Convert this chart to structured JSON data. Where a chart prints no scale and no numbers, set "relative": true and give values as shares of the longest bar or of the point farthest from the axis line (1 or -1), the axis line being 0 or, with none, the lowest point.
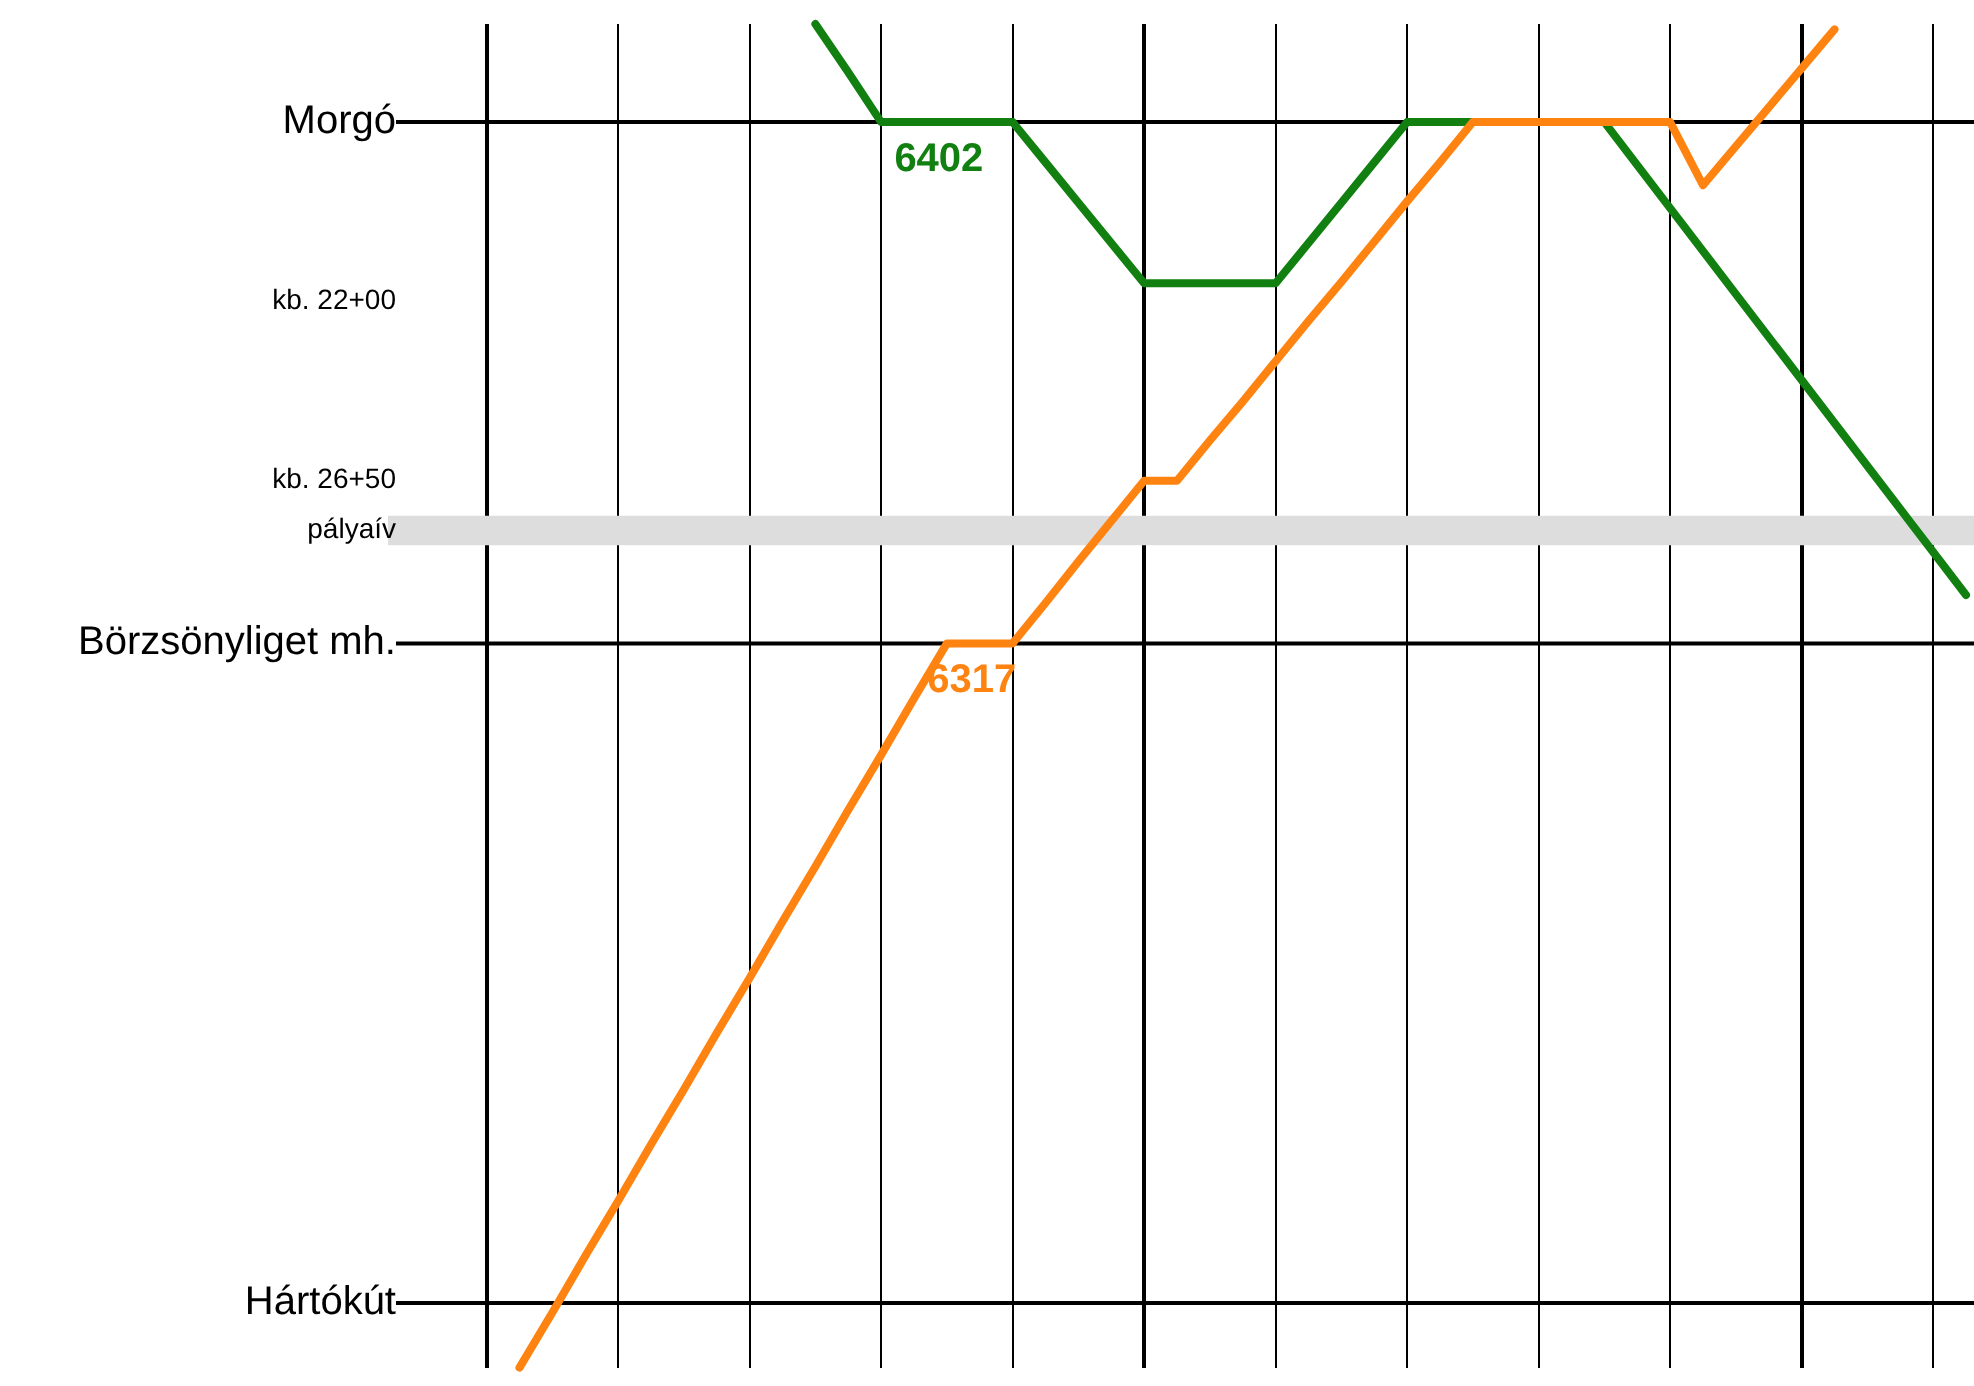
{
  "chart_data": {
    "type": "line",
    "relative": true,
    "grid": "x",
    "categories": [
      null,
      null,
      null,
      null,
      null,
      null,
      null,
      null,
      null,
      null,
      null,
      null,
      null,
      null,
      null,
      null,
      null,
      null,
      null,
      null,
      null,
      null,
      null,
      null,
      null,
      null,
      null,
      null,
      null,
      null,
      null,
      null,
      null,
      null,
      null,
      null,
      null,
      null,
      null,
      null,
      null,
      null,
      null,
      null,
      null,
      null,
      null,
      null,
      null
    ],
    "series": [
      {
        "name": "6402",
        "color": "#118011",
        "values": [
          null,
          null,
          null,
          null,
          null,
          null,
          null,
          null,
          null,
          null,
          null,
          null,
          null,
          1.0,
          0.964,
          0.927,
          0.927,
          0.927,
          0.927,
          0.927,
          0.897,
          0.867,
          0.837,
          0.807,
          0.807,
          0.807,
          0.807,
          0.807,
          0.837,
          0.867,
          0.897,
          0.927,
          0.927,
          0.927,
          0.927,
          0.927,
          0.927,
          0.927,
          0.895,
          0.863,
          0.831,
          0.799,
          0.767,
          0.735,
          0.703,
          0.671,
          0.639,
          0.607,
          0.575
        ]
      },
      {
        "name": "6317",
        "color": "#ff8311",
        "values": [
          null,
          null,
          null,
          null,
          0,
          0.041,
          0.083,
          0.124,
          0.166,
          0.207,
          0.249,
          0.29,
          0.332,
          0.373,
          0.415,
          0.456,
          0.498,
          0.539,
          0.539,
          0.539,
          0.569,
          0.6,
          0.63,
          0.66,
          0.66,
          0.69,
          0.719,
          0.749,
          0.779,
          0.808,
          0.838,
          0.868,
          0.897,
          0.927,
          0.927,
          0.927,
          0.927,
          0.927,
          0.927,
          0.927,
          0.88,
          0.909,
          0.938,
          0.967,
          0.996,
          null,
          null,
          null,
          null
        ]
      }
    ],
    "ref_lines": [
      {
        "axis": "y",
        "value": 0.927,
        "label": "Morgó",
        "color": "#000000"
      },
      {
        "axis": "y",
        "value": 0.539,
        "label": "Börzsönyliget mh.",
        "color": "#000000"
      },
      {
        "axis": "y",
        "value": 0.048,
        "label": "Hártókút",
        "color": "#000000"
      }
    ],
    "bands": [
      {
        "axis": "y",
        "from": 0.612,
        "to": 0.634,
        "label": "pályaív",
        "color": "#dddddd"
      }
    ],
    "annotations": [
      "kb. 22+00",
      "kb. 26+50"
    ]
  }
}
